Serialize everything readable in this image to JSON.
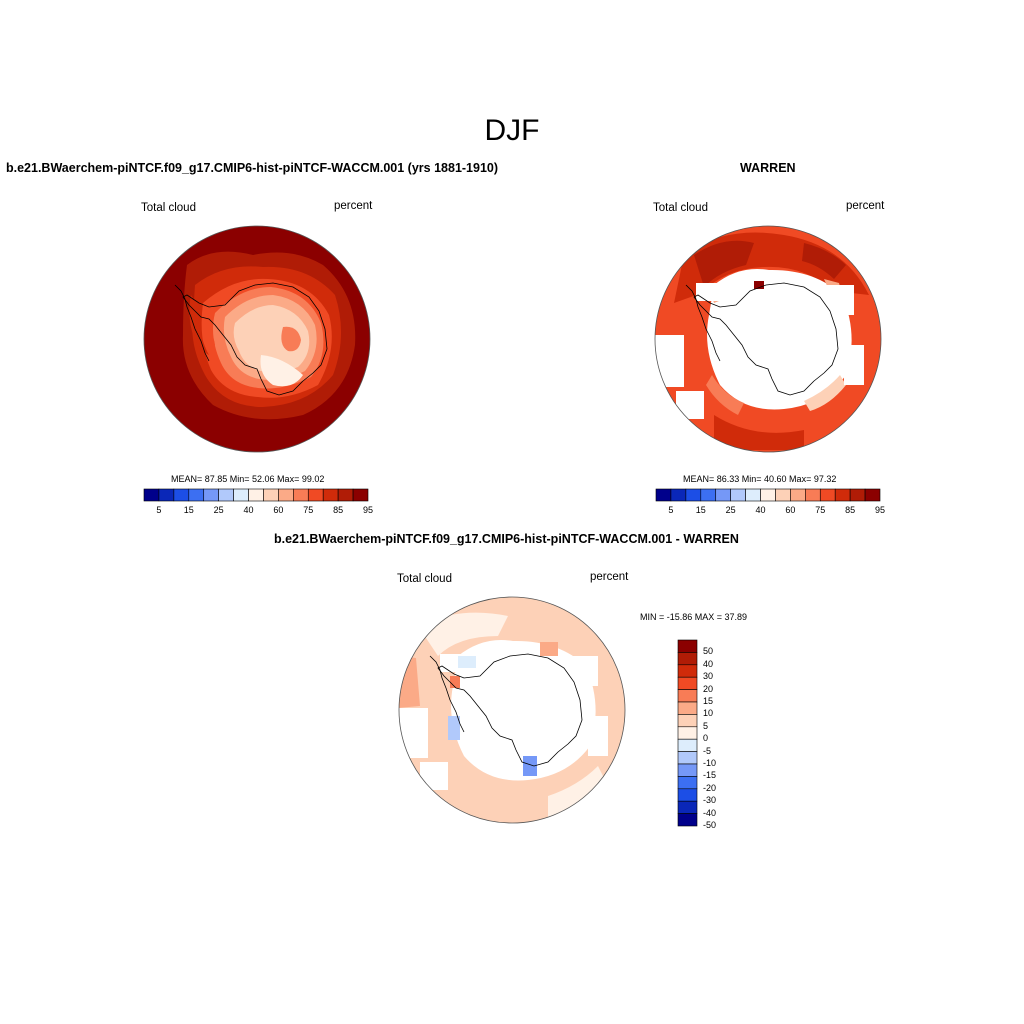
{
  "title": "DJF",
  "panels": {
    "model": {
      "title": "b.e21.BWaerchem-piNTCF.f09_g17.CMIP6-hist-piNTCF-WACCM.001 (yrs 1881-1910)",
      "left_label": "Total cloud",
      "right_label": "percent",
      "stats": "MEAN=  87.85  Min=  52.06  Max=  99.02"
    },
    "obs": {
      "title": "WARREN",
      "left_label": "Total cloud",
      "right_label": "percent",
      "stats": "MEAN=  86.33  Min=  40.60  Max=  97.32"
    },
    "diff": {
      "title": "b.e21.BWaerchem-piNTCF.f09_g17.CMIP6-hist-piNTCF-WACCM.001 - WARREN",
      "left_label": "Total cloud",
      "right_label": "percent",
      "stats": "MIN = -15.86 MAX =  37.89"
    }
  },
  "colorbar_abs": {
    "colors": [
      "#00008b",
      "#0a27b8",
      "#1c4ee6",
      "#3c6ff2",
      "#7598f7",
      "#b1c9fb",
      "#ddedfc",
      "#fff1e6",
      "#fdd1b7",
      "#fbaa87",
      "#f87c56",
      "#f04a24",
      "#d02b0a",
      "#b01c06",
      "#8b0000"
    ],
    "ticks": [
      "5",
      "15",
      "25",
      "40",
      "60",
      "75",
      "85",
      "95"
    ]
  },
  "colorbar_diff": {
    "colors": [
      "#00008b",
      "#0a27b8",
      "#1c4ee6",
      "#3c6ff2",
      "#7598f7",
      "#b1c9fb",
      "#ddedfc",
      "#fff1e6",
      "#fdd1b7",
      "#fbaa87",
      "#f87c56",
      "#f04a24",
      "#d02b0a",
      "#b01c06",
      "#8b0000"
    ],
    "ticks": [
      "50",
      "40",
      "30",
      "20",
      "15",
      "10",
      "5",
      "0",
      "-5",
      "-10",
      "-15",
      "-20",
      "-30",
      "-40",
      "-50"
    ]
  },
  "map_colors": {
    "dark_red": "#8b0000",
    "red": "#b01c06",
    "orange_red": "#d02b0a",
    "orange": "#f04a24",
    "salmon": "#f87c56",
    "light_salmon": "#fbaa87",
    "peach": "#fdd1b7",
    "cream": "#fff1e6",
    "light_blue": "#ddedfc",
    "blue": "#b1c9fb",
    "mid_blue": "#7598f7"
  }
}
